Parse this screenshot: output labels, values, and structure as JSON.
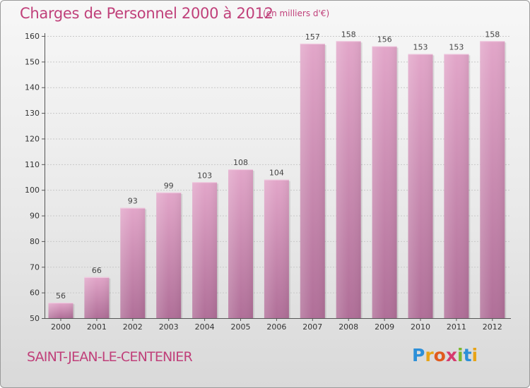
{
  "header": {
    "title": "Charges de Personnel 2000 à 2012",
    "subtitle": "(en milliers d'€)"
  },
  "footer": {
    "commune": "SAINT-JEAN-LE-CENTENIER",
    "logo_text": "Proxiti"
  },
  "colors": {
    "accent": "#c0407a",
    "bar_top": "#e2a6c9",
    "bar_bottom": "#b06f98"
  },
  "chart_data": {
    "type": "bar",
    "title": "Charges de Personnel 2000 à 2012",
    "subtitle": "(en milliers d'€)",
    "categories": [
      "2000",
      "2001",
      "2002",
      "2003",
      "2004",
      "2005",
      "2006",
      "2007",
      "2008",
      "2009",
      "2010",
      "2011",
      "2012"
    ],
    "values": [
      56,
      66,
      93,
      99,
      103,
      108,
      104,
      157,
      158,
      156,
      153,
      153,
      158
    ],
    "ylim": [
      50,
      160
    ],
    "yticks": [
      50,
      60,
      70,
      80,
      90,
      100,
      110,
      120,
      130,
      140,
      150,
      160
    ],
    "grid": true,
    "data_labels": true
  }
}
